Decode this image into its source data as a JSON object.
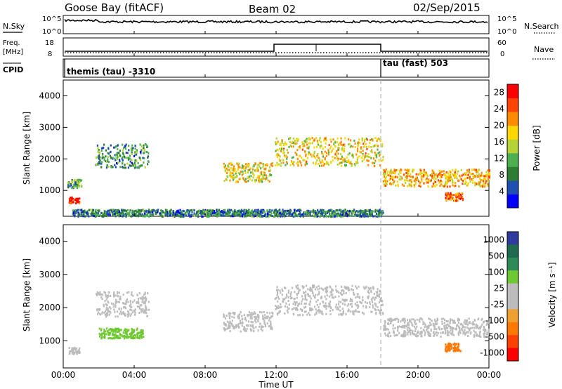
{
  "header": {
    "station": "Goose Bay (fitACF)",
    "beam": "Beam 02",
    "date": "02/Sep/2015"
  },
  "strips": {
    "nsky_label": "N.Sky",
    "nsky_ticks": [
      "10^5",
      "10^0"
    ],
    "nsearch_label": "N.Search",
    "freq_label": "Freq.",
    "freq_unit": "[MHz]",
    "freq_ticks": [
      "18",
      "8"
    ],
    "nave_label": "Nave",
    "nave_ticks": [
      "60",
      "0"
    ],
    "cpid_label": "CPID",
    "cpid_segments": [
      {
        "label": "themis (tau) -3310",
        "start_hour": 0
      },
      {
        "label": "tau (fast) 503",
        "start_hour": 18
      }
    ]
  },
  "colors": {
    "power": [
      "#0000ff",
      "#1f4fb0",
      "#2e7d32",
      "#4caf50",
      "#b5d334",
      "#ffd700",
      "#ff8c00",
      "#ff4500",
      "#ff0000"
    ],
    "velocity": [
      "#2d3a9e",
      "#1e6b4f",
      "#2e8b57",
      "#6ec832",
      "#bcbcbc",
      "#bcbcbc",
      "#f0a030",
      "#ff7800",
      "#ff4000",
      "#ff0000"
    ]
  },
  "chart_data": [
    {
      "type": "heatmap",
      "panel": "power",
      "xlabel": "",
      "ylabel": "Slant Range [km]",
      "ylim": [
        180,
        4500
      ],
      "xlim": [
        0,
        24
      ],
      "ytick_labels": [
        "1000",
        "2000",
        "3000",
        "4000"
      ],
      "colorbar_label": "Power [dB]",
      "colorbar_ticks": [
        "4",
        "8",
        "12",
        "16",
        "20",
        "24",
        "28"
      ],
      "colorbar_range": [
        0,
        30
      ],
      "echo_regions": [
        {
          "t0": 0.3,
          "t1": 0.9,
          "r0": 620,
          "r1": 820,
          "value": 27
        },
        {
          "t0": 0.2,
          "t1": 1.0,
          "r0": 1100,
          "r1": 1400,
          "value": 10
        },
        {
          "t0": 1.8,
          "t1": 4.8,
          "r0": 1750,
          "r1": 2500,
          "value": 9
        },
        {
          "t0": 9.0,
          "t1": 11.8,
          "r0": 1300,
          "r1": 1900,
          "value": 17
        },
        {
          "t0": 11.9,
          "t1": 18.0,
          "r0": 1800,
          "r1": 2700,
          "value": 18
        },
        {
          "t0": 18.0,
          "t1": 24.0,
          "r0": 1150,
          "r1": 1700,
          "value": 20
        },
        {
          "t0": 21.5,
          "t1": 22.5,
          "r0": 700,
          "r1": 950,
          "value": 24
        },
        {
          "t0": 0.5,
          "t1": 18.0,
          "r0": 200,
          "r1": 420,
          "value": 8
        }
      ]
    },
    {
      "type": "heatmap",
      "panel": "velocity",
      "xlabel": "Time UT",
      "ylabel": "Slant Range [km]",
      "ylim": [
        180,
        4500
      ],
      "xlim": [
        0,
        24
      ],
      "xtick_labels": [
        "00:00",
        "04:00",
        "08:00",
        "12:00",
        "16:00",
        "20:00",
        "00:00"
      ],
      "ytick_labels": [
        "1000",
        "2000",
        "3000",
        "4000"
      ],
      "colorbar_label": "Velocity [m s⁻¹]",
      "colorbar_ticks": [
        "1000",
        "500",
        "100",
        "25",
        "-25",
        "-100",
        "-500",
        "-1000"
      ],
      "echo_regions": [
        {
          "t0": 0.3,
          "t1": 0.9,
          "r0": 620,
          "r1": 820,
          "value": 0
        },
        {
          "t0": 1.8,
          "t1": 4.8,
          "r0": 1750,
          "r1": 2500,
          "value": 0
        },
        {
          "t0": 9.0,
          "t1": 11.8,
          "r0": 1300,
          "r1": 1900,
          "value": 0
        },
        {
          "t0": 11.9,
          "t1": 18.0,
          "r0": 1800,
          "r1": 2700,
          "value": 0
        },
        {
          "t0": 18.0,
          "t1": 24.0,
          "r0": 1150,
          "r1": 1700,
          "value": 0
        },
        {
          "t0": 21.5,
          "t1": 22.5,
          "r0": 700,
          "r1": 950,
          "value": -400
        },
        {
          "t0": 2.0,
          "t1": 4.5,
          "r0": 1100,
          "r1": 1400,
          "value": 80
        }
      ]
    }
  ]
}
